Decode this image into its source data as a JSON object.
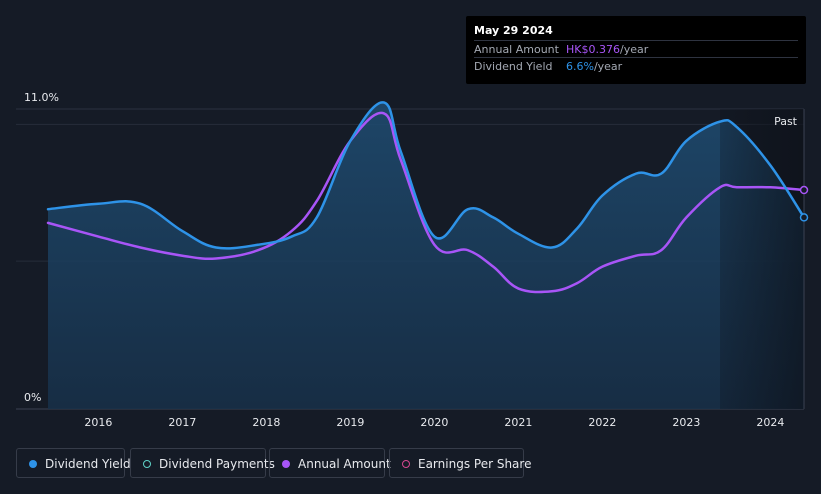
{
  "tooltip": {
    "date": "May 29 2024",
    "rows": [
      {
        "label": "Annual Amount",
        "value": "HK$0.376",
        "unit": "/year"
      },
      {
        "label": "Dividend Yield",
        "value": "6.6%",
        "unit": "/year"
      }
    ]
  },
  "past_label": "Past",
  "legend": [
    {
      "label": "Dividend Yield",
      "color": "#2e93e8",
      "style": "filled"
    },
    {
      "label": "Dividend Payments",
      "color": "#5fd3c8",
      "style": "hollow"
    },
    {
      "label": "Annual Amount",
      "color": "#a855f7",
      "style": "filled"
    },
    {
      "label": "Earnings Per Share",
      "color": "#d6478f",
      "style": "hollow"
    }
  ],
  "chart_data": {
    "type": "line",
    "x_range": [
      2015.4,
      2024.4
    ],
    "ylim": [
      0,
      11.0
    ],
    "y_tick_labels": [
      "11.0%",
      "0%"
    ],
    "x_tick_labels": [
      "2016",
      "2017",
      "2018",
      "2019",
      "2020",
      "2021",
      "2022",
      "2023",
      "2024"
    ],
    "x_ticks": [
      2016,
      2017,
      2018,
      2019,
      2020,
      2021,
      2022,
      2023,
      2024
    ],
    "gridlines_y": [
      10,
      5
    ],
    "past_start": 2023.4,
    "series": [
      {
        "name": "Dividend Yield",
        "color": "#2e93e8",
        "x": [
          2015.4,
          2016.0,
          2016.5,
          2017.0,
          2017.4,
          2017.9,
          2018.3,
          2018.6,
          2019.0,
          2019.4,
          2019.6,
          2020.0,
          2020.4,
          2020.7,
          2021.0,
          2021.4,
          2021.7,
          2022.0,
          2022.4,
          2022.7,
          2023.0,
          2023.4,
          2023.6,
          2024.0,
          2024.4
        ],
        "y": [
          6.9,
          7.1,
          7.1,
          6.1,
          5.5,
          5.6,
          5.9,
          6.6,
          9.4,
          10.8,
          9.0,
          5.9,
          6.9,
          6.6,
          6.0,
          5.5,
          6.2,
          7.4,
          8.2,
          8.2,
          9.4,
          10.1,
          9.9,
          8.5,
          6.6
        ]
      },
      {
        "name": "Annual Amount",
        "color": "#a855f7",
        "x": [
          2015.4,
          2016.0,
          2016.5,
          2017.0,
          2017.4,
          2017.9,
          2018.3,
          2018.6,
          2019.0,
          2019.4,
          2019.6,
          2020.0,
          2020.4,
          2020.7,
          2021.0,
          2021.4,
          2021.7,
          2022.0,
          2022.4,
          2022.7,
          2023.0,
          2023.4,
          2023.6,
          2024.0,
          2024.4
        ],
        "y": [
          6.4,
          5.9,
          5.5,
          5.2,
          5.1,
          5.4,
          6.1,
          7.2,
          9.4,
          10.4,
          8.7,
          5.6,
          5.4,
          4.8,
          4.0,
          3.9,
          4.2,
          4.8,
          5.2,
          5.4,
          6.6,
          7.7,
          7.7,
          7.7,
          7.6
        ]
      }
    ]
  }
}
